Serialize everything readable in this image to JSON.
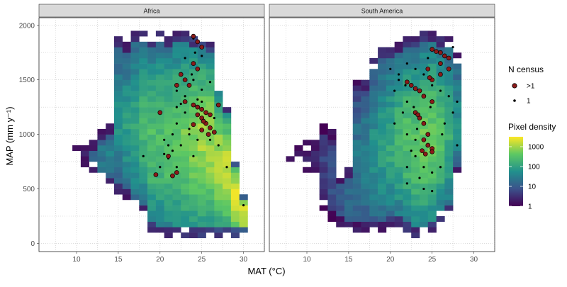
{
  "chart_data": {
    "type": "heatmap",
    "xlabel": "MAT (°C)",
    "ylabel": "MAP (mm y⁻¹)",
    "xlim": [
      5.5,
      32.5
    ],
    "ylim": [
      -75,
      2070
    ],
    "x_ticks": [
      "10",
      "15",
      "20",
      "25",
      "30"
    ],
    "y_ticks": [
      "0",
      "500",
      "1000",
      "1500",
      "2000"
    ],
    "cell_size": {
      "mat": 1,
      "map": 50
    },
    "grid": true,
    "legend_position": "right",
    "legend": {
      "points_title": "N census",
      "points_entries": [
        {
          "label": ">1",
          "color": "#8b1a1a"
        },
        {
          "label": "1",
          "color": "#000000"
        }
      ],
      "density_title": "Pixel density",
      "density_breaks": [
        "1000",
        "100",
        "10",
        "1"
      ],
      "density_scale": "log10",
      "density_colors": [
        "#440154",
        "#3b528b",
        "#21908d",
        "#5dc863",
        "#fde725"
      ]
    },
    "panels": [
      {
        "title": "Africa",
        "density_columns": [
          {
            "mat": 10,
            "from": 850,
            "to": 950,
            "level": 0.2
          },
          {
            "mat": 11,
            "from": 700,
            "to": 900,
            "level": 0.3
          },
          {
            "mat": 12,
            "from": 650,
            "to": 950,
            "level": 0.35
          },
          {
            "mat": 13,
            "from": 550,
            "to": 1050,
            "level": 0.4
          },
          {
            "mat": 14,
            "from": 500,
            "to": 1100,
            "level": 0.45
          },
          {
            "mat": 15,
            "from": 450,
            "to": 1900,
            "level": 0.5
          },
          {
            "mat": 16,
            "from": 400,
            "to": 1850,
            "level": 0.55
          },
          {
            "mat": 17,
            "from": 300,
            "to": 1950,
            "level": 0.6
          },
          {
            "mat": 18,
            "from": 250,
            "to": 1950,
            "level": 0.65
          },
          {
            "mat": 19,
            "from": 100,
            "to": 1900,
            "level": 0.7
          },
          {
            "mat": 20,
            "from": 50,
            "to": 1950,
            "level": 0.7
          },
          {
            "mat": 21,
            "from": 50,
            "to": 1900,
            "level": 0.72
          },
          {
            "mat": 22,
            "from": 50,
            "to": 1950,
            "level": 0.75
          },
          {
            "mat": 23,
            "from": 50,
            "to": 1950,
            "level": 0.78
          },
          {
            "mat": 24,
            "from": 50,
            "to": 1900,
            "level": 0.82
          },
          {
            "mat": 25,
            "from": 50,
            "to": 1900,
            "level": 0.85
          },
          {
            "mat": 26,
            "from": 50,
            "to": 1850,
            "level": 0.85
          },
          {
            "mat": 27,
            "from": 50,
            "to": 1500,
            "level": 0.87
          },
          {
            "mat": 28,
            "from": 50,
            "to": 1300,
            "level": 0.92
          },
          {
            "mat": 29,
            "from": 50,
            "to": 800,
            "level": 0.95
          },
          {
            "mat": 30,
            "from": 50,
            "to": 500,
            "level": 0.95
          }
        ],
        "census_multi": [
          [
            24,
            1900
          ],
          [
            24.5,
            1850
          ],
          [
            25,
            1800
          ],
          [
            24,
            1650
          ],
          [
            24.5,
            1600
          ],
          [
            22.5,
            1550
          ],
          [
            23,
            1500
          ],
          [
            23.5,
            1450
          ],
          [
            22,
            1450
          ],
          [
            23,
            1300
          ],
          [
            24,
            1270
          ],
          [
            24.5,
            1250
          ],
          [
            25,
            1230
          ],
          [
            25.5,
            1200
          ],
          [
            26,
            1180
          ],
          [
            25,
            1150
          ],
          [
            25.5,
            1100
          ],
          [
            26,
            1060
          ],
          [
            25,
            1040
          ],
          [
            26.5,
            1020
          ],
          [
            27,
            1270
          ],
          [
            24.5,
            1180
          ],
          [
            25.2,
            1120
          ],
          [
            25.8,
            1000
          ],
          [
            20,
            1200
          ],
          [
            21,
            800
          ],
          [
            22,
            650
          ],
          [
            21.5,
            620
          ],
          [
            19.5,
            630
          ],
          [
            24,
            1090
          ]
        ],
        "census_single": [
          [
            24,
            1880
          ],
          [
            25,
            1720
          ],
          [
            23,
            1700
          ],
          [
            24,
            1500
          ],
          [
            26,
            1480
          ],
          [
            22,
            1400
          ],
          [
            23,
            1350
          ],
          [
            22.5,
            1280
          ],
          [
            24.5,
            1320
          ],
          [
            23,
            1200
          ],
          [
            22,
            1100
          ],
          [
            23.5,
            1000
          ],
          [
            24.5,
            950
          ],
          [
            22.5,
            900
          ],
          [
            21,
            900
          ],
          [
            20.5,
            820
          ],
          [
            21,
            780
          ],
          [
            22,
            700
          ],
          [
            20,
            700
          ],
          [
            18,
            800
          ],
          [
            21.5,
            850
          ],
          [
            24,
            800
          ],
          [
            26,
            950
          ],
          [
            27,
            900
          ],
          [
            28,
            700
          ],
          [
            30,
            350
          ],
          [
            25,
            1300
          ],
          [
            26.5,
            1150
          ],
          [
            23.5,
            1050
          ],
          [
            21.5,
            1000
          ],
          [
            20.5,
            950
          ],
          [
            22,
            1250
          ],
          [
            25,
            1410
          ],
          [
            23.8,
            1550
          ],
          [
            24.2,
            1750
          ]
        ]
      },
      {
        "title": "South America",
        "density_columns": [
          {
            "mat": 8,
            "from": 750,
            "to": 800,
            "level": 0.1
          },
          {
            "mat": 9,
            "from": 700,
            "to": 900,
            "level": 0.1
          },
          {
            "mat": 10,
            "from": 650,
            "to": 950,
            "level": 0.1
          },
          {
            "mat": 11,
            "from": 600,
            "to": 950,
            "level": 0.15
          },
          {
            "mat": 12,
            "from": 300,
            "to": 1100,
            "level": 0.2
          },
          {
            "mat": 13,
            "from": 200,
            "to": 1050,
            "level": 0.25
          },
          {
            "mat": 14,
            "from": 150,
            "to": 650,
            "level": 0.3
          },
          {
            "mat": 15,
            "from": 100,
            "to": 700,
            "level": 0.35
          },
          {
            "mat": 16,
            "from": 100,
            "to": 1500,
            "level": 0.4
          },
          {
            "mat": 17,
            "from": 100,
            "to": 1500,
            "level": 0.45
          },
          {
            "mat": 18,
            "from": 100,
            "to": 1700,
            "level": 0.5
          },
          {
            "mat": 19,
            "from": 100,
            "to": 1800,
            "level": 0.55
          },
          {
            "mat": 20,
            "from": 150,
            "to": 1800,
            "level": 0.6
          },
          {
            "mat": 21,
            "from": 150,
            "to": 1850,
            "level": 0.65
          },
          {
            "mat": 22,
            "from": 100,
            "to": 1900,
            "level": 0.7
          },
          {
            "mat": 23,
            "from": 50,
            "to": 1900,
            "level": 0.72
          },
          {
            "mat": 24,
            "from": 50,
            "to": 1950,
            "level": 0.75
          },
          {
            "mat": 25,
            "from": 100,
            "to": 1950,
            "level": 0.75
          },
          {
            "mat": 26,
            "from": 200,
            "to": 1900,
            "level": 0.7
          },
          {
            "mat": 27,
            "from": 250,
            "to": 1900,
            "level": 0.62
          },
          {
            "mat": 28,
            "from": 600,
            "to": 1750,
            "level": 0.5
          }
        ],
        "census_multi": [
          [
            25,
            1780
          ],
          [
            25.5,
            1760
          ],
          [
            26,
            1750
          ],
          [
            26.5,
            1720
          ],
          [
            27,
            1700
          ],
          [
            24.5,
            1600
          ],
          [
            26,
            1650
          ],
          [
            25,
            1500
          ],
          [
            22,
            1480
          ],
          [
            22.5,
            1450
          ],
          [
            23,
            1420
          ],
          [
            23.5,
            1400
          ],
          [
            24,
            1350
          ],
          [
            25,
            1300
          ],
          [
            23,
            1200
          ],
          [
            23.5,
            1150
          ],
          [
            24,
            1100
          ],
          [
            24.5,
            1000
          ],
          [
            24,
            950
          ],
          [
            24.5,
            900
          ],
          [
            25,
            870
          ],
          [
            24.2,
            820
          ],
          [
            23.8,
            850
          ],
          [
            25,
            840
          ],
          [
            26,
            1550
          ],
          [
            24.7,
            1520
          ],
          [
            27,
            1600
          ],
          [
            23.3,
            1180
          ]
        ],
        "census_single": [
          [
            20,
            1600
          ],
          [
            21,
            1500
          ],
          [
            22,
            1650
          ],
          [
            23,
            1600
          ],
          [
            24,
            1550
          ],
          [
            25,
            1450
          ],
          [
            26,
            1400
          ],
          [
            27,
            1350
          ],
          [
            28,
            1300
          ],
          [
            22,
            1300
          ],
          [
            21.5,
            1200
          ],
          [
            20.5,
            1100
          ],
          [
            22,
            1000
          ],
          [
            23,
            950
          ],
          [
            22.5,
            850
          ],
          [
            23,
            800
          ],
          [
            22,
            700
          ],
          [
            24,
            700
          ],
          [
            25,
            650
          ],
          [
            26,
            700
          ],
          [
            23.5,
            600
          ],
          [
            22,
            550
          ],
          [
            24,
            500
          ],
          [
            25,
            480
          ],
          [
            26.5,
            1100
          ],
          [
            27.5,
            1200
          ],
          [
            28,
            900
          ],
          [
            21,
            1550
          ],
          [
            24.5,
            1700
          ],
          [
            27.5,
            1800
          ],
          [
            20.5,
            1400
          ],
          [
            22.8,
            1250
          ],
          [
            24.8,
            1250
          ],
          [
            26.2,
            1000
          ],
          [
            23.2,
            1050
          ],
          [
            21.8,
            1450
          ]
        ]
      }
    ]
  }
}
